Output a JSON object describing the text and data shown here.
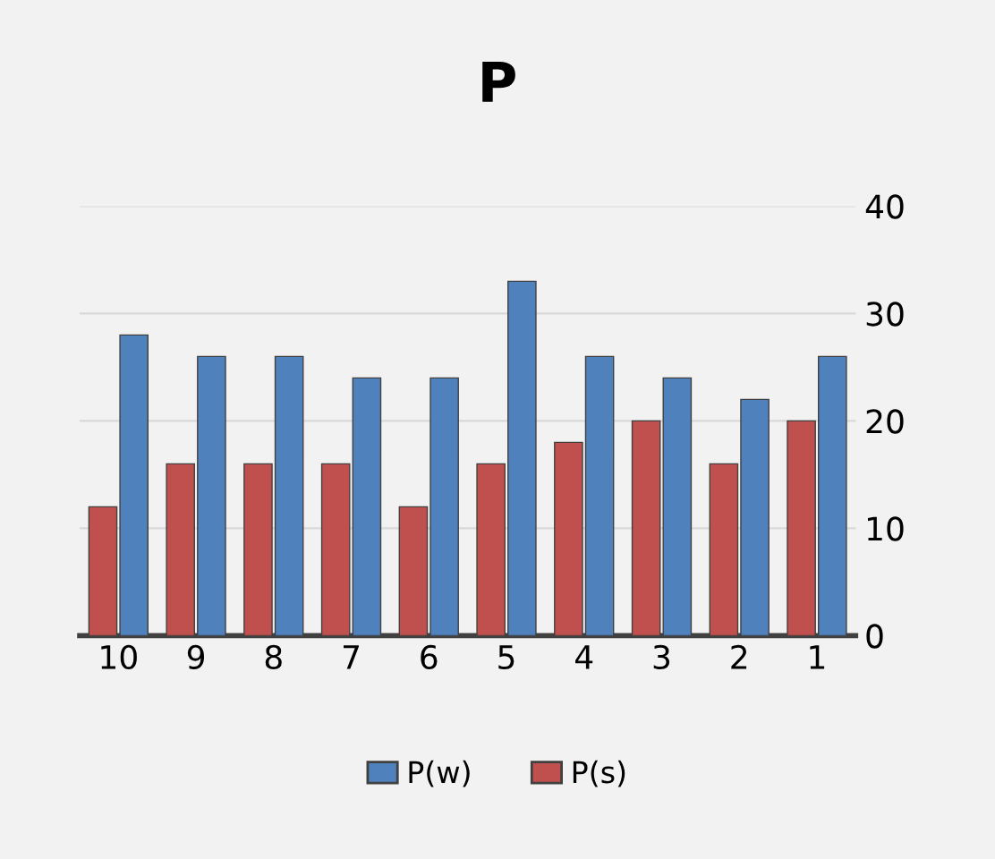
{
  "chart_data": {
    "type": "bar",
    "title": "P",
    "categories": [
      "10",
      "9",
      "8",
      "7",
      "6",
      "5",
      "4",
      "3",
      "2",
      "1"
    ],
    "series": [
      {
        "name": "P(w)",
        "color": "#4f81bd",
        "values": [
          28,
          26,
          26,
          24,
          24,
          33,
          26,
          24,
          22,
          26
        ]
      },
      {
        "name": "P(s)",
        "color": "#c0504d",
        "values": [
          12,
          16,
          16,
          16,
          12,
          16,
          18,
          20,
          16,
          20
        ]
      }
    ],
    "ylim": [
      0,
      40
    ],
    "yticks": [
      0,
      10,
      20,
      30,
      40
    ],
    "grid": "y",
    "legend": "bottom"
  }
}
